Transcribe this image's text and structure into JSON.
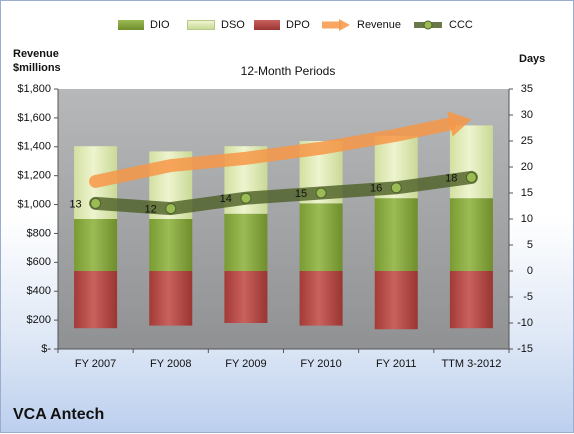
{
  "chart_data": {
    "type": "bar",
    "subtitle": "12-Month Periods",
    "company": "VCA Antech",
    "left_axis_title_line1": "Revenue",
    "left_axis_title_line2": "$millions",
    "right_axis_title": "Days",
    "categories": [
      "FY 2007",
      "FY 2008",
      "FY 2009",
      "FY 2010",
      "FY 2011",
      "TTM 3-2012"
    ],
    "left_axis": {
      "range": [
        0,
        1800
      ],
      "ticks": [
        0,
        200,
        400,
        600,
        800,
        1000,
        1200,
        1400,
        1600,
        1800
      ],
      "tick_labels": [
        "$-",
        "$200",
        "$400",
        "$600",
        "$800",
        "$1,000",
        "$1,200",
        "$1,400",
        "$1,600",
        "$1,800"
      ]
    },
    "right_axis": {
      "range": [
        -15,
        35
      ],
      "ticks": [
        -15,
        -10,
        -5,
        0,
        5,
        10,
        15,
        20,
        25,
        30,
        35
      ],
      "tick_labels": [
        "-15",
        "-10",
        "-5",
        "0",
        "5",
        "10",
        "15",
        "20",
        "25",
        "30",
        "35"
      ]
    },
    "series": [
      {
        "name": "DIO",
        "axis": "right",
        "kind": "stacked-bar",
        "values": [
          10,
          10,
          11,
          13,
          14,
          14
        ]
      },
      {
        "name": "DSO",
        "axis": "right",
        "kind": "stacked-bar",
        "values": [
          14,
          13,
          13,
          12,
          12,
          14
        ]
      },
      {
        "name": "DPO",
        "axis": "right",
        "kind": "bar-negative",
        "values": [
          -11,
          -10.5,
          -10,
          -10.5,
          -11.2,
          -11
        ]
      },
      {
        "name": "Revenue",
        "axis": "left",
        "kind": "arrow-line",
        "values": [
          1160,
          1270,
          1320,
          1390,
          1480,
          1590
        ]
      },
      {
        "name": "CCC",
        "axis": "right",
        "kind": "line",
        "values": [
          13,
          12,
          14,
          15,
          16,
          18
        ],
        "labels": [
          "13",
          "12",
          "14",
          "15",
          "16",
          "18"
        ]
      }
    ],
    "legend_position": "top",
    "grid": false,
    "colors": {
      "DIO": "#8caa3f",
      "DSO": "#dfeab2",
      "DPO": "#c0504d",
      "Revenue": "#f79646",
      "CCC": "#4f6228",
      "plot_bg": "#9ea0a2"
    }
  }
}
